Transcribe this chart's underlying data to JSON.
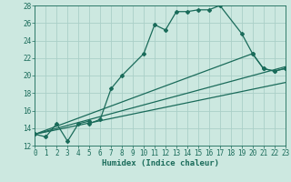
{
  "xlabel": "Humidex (Indice chaleur)",
  "bg_color": "#cce8e0",
  "grid_color": "#aacfc8",
  "line_color": "#1a6b5a",
  "xmin": 0,
  "xmax": 23,
  "ymin": 12,
  "ymax": 28,
  "yticks": [
    12,
    14,
    16,
    18,
    20,
    22,
    24,
    26,
    28
  ],
  "xticks": [
    0,
    1,
    2,
    3,
    4,
    5,
    6,
    7,
    8,
    9,
    10,
    11,
    12,
    13,
    14,
    15,
    16,
    17,
    18,
    19,
    20,
    21,
    22,
    23
  ],
  "curve1_x": [
    0,
    1,
    2,
    3,
    4,
    5,
    5,
    6,
    7,
    8,
    10,
    11,
    12,
    13,
    14,
    15,
    16,
    17,
    19,
    20,
    21,
    22,
    23
  ],
  "curve1_y": [
    13.3,
    13.0,
    14.5,
    12.5,
    14.5,
    14.8,
    14.5,
    15.0,
    18.5,
    20.0,
    22.5,
    25.8,
    25.2,
    27.3,
    27.3,
    27.5,
    27.5,
    28.0,
    24.8,
    22.5,
    20.8,
    20.5,
    20.8
  ],
  "curve2_x": [
    0,
    20,
    21,
    22,
    23
  ],
  "curve2_y": [
    13.3,
    22.5,
    20.8,
    20.5,
    20.8
  ],
  "curve3_x": [
    0,
    23
  ],
  "curve3_y": [
    13.3,
    21.0
  ],
  "curve4_x": [
    0,
    23
  ],
  "curve4_y": [
    13.3,
    19.2
  ]
}
